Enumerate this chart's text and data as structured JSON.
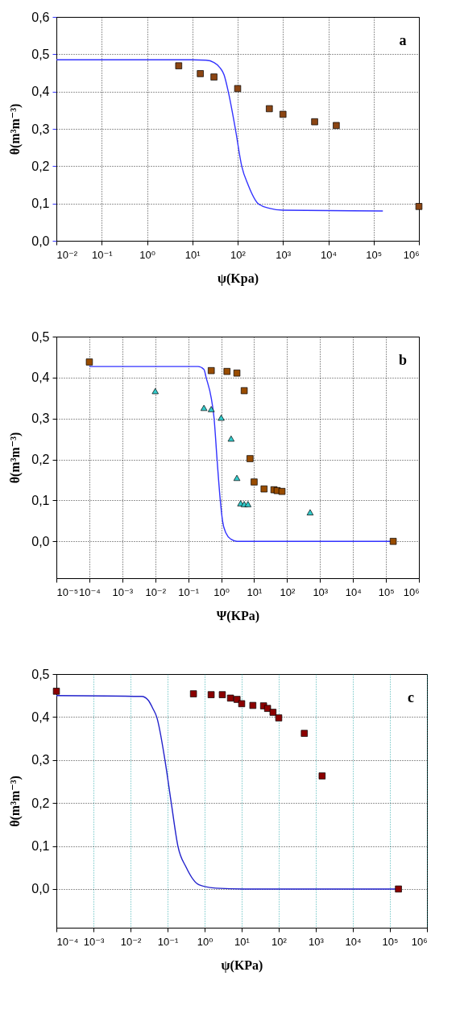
{
  "chart_data": [
    {
      "type": "scatter",
      "xlabel": "ψ(Kpa)",
      "ylabel": "θ(m³m⁻³)",
      "annotations": [
        "a"
      ],
      "log": "x",
      "grid": true,
      "xlim": [
        0.01,
        1000000
      ],
      "xticks": [
        {
          "value": 0.01,
          "label": "10⁻²"
        },
        {
          "value": 0.1,
          "label": "10⁻¹"
        },
        {
          "value": 1,
          "label": "10⁰"
        },
        {
          "value": 10,
          "label": "10¹"
        },
        {
          "value": 100,
          "label": "10²"
        },
        {
          "value": 1000,
          "label": "10³"
        },
        {
          "value": 10000,
          "label": "10⁴"
        },
        {
          "value": 100000,
          "label": "10⁵"
        },
        {
          "value": 1000000,
          "label": "10⁶"
        }
      ],
      "ylim": [
        0,
        0.6
      ],
      "yticks": [
        {
          "value": 0,
          "label": "0,0"
        },
        {
          "value": 0.1,
          "label": "0,1"
        },
        {
          "value": 0.2,
          "label": "0,2"
        },
        {
          "value": 0.3,
          "label": "0,3"
        },
        {
          "value": 0.4,
          "label": "0,4"
        },
        {
          "value": 0.5,
          "label": "0,5"
        },
        {
          "value": 0.6,
          "label": "0,6"
        }
      ],
      "series": [
        {
          "type": "line",
          "color": "#3333ff",
          "x": [
            0.01,
            10,
            20,
            30,
            40,
            50,
            62,
            89,
            123,
            170,
            282,
            500,
            1000,
            160000
          ],
          "values": [
            0.485,
            0.485,
            0.484,
            0.478,
            0.465,
            0.445,
            0.4,
            0.3,
            0.2,
            0.15,
            0.1,
            0.087,
            0.082,
            0.08
          ]
        },
        {
          "marker": "square",
          "color": "#8b4513",
          "x": [
            5,
            15,
            30,
            100,
            500,
            1000,
            5000,
            15000,
            1000000
          ],
          "values": [
            0.469,
            0.448,
            0.439,
            0.408,
            0.354,
            0.339,
            0.319,
            0.309,
            0.092
          ]
        }
      ]
    },
    {
      "type": "scatter",
      "xlabel": "Ψ(KPa)",
      "ylabel": "θ(m³m⁻³)",
      "annotations": [
        "b"
      ],
      "log": "x",
      "grid": true,
      "xlim": [
        1e-05,
        1000000
      ],
      "xticks": [
        {
          "value": 1e-05,
          "label": "10⁻⁵"
        },
        {
          "value": 0.0001,
          "label": "10⁻⁴"
        },
        {
          "value": 0.001,
          "label": "10⁻³"
        },
        {
          "value": 0.01,
          "label": "10⁻²"
        },
        {
          "value": 0.1,
          "label": "10⁻¹"
        },
        {
          "value": 1,
          "label": "10⁰"
        },
        {
          "value": 10,
          "label": "10¹"
        },
        {
          "value": 100,
          "label": "10²"
        },
        {
          "value": 1000,
          "label": "10³"
        },
        {
          "value": 10000,
          "label": "10⁴"
        },
        {
          "value": 100000,
          "label": "10⁵"
        },
        {
          "value": 1000000,
          "label": "10⁶"
        }
      ],
      "ylim": [
        -0.09,
        0.5
      ],
      "yticks": [
        {
          "value": 0,
          "label": "0,0"
        },
        {
          "value": 0.1,
          "label": "0,1"
        },
        {
          "value": 0.2,
          "label": "0,2"
        },
        {
          "value": 0.3,
          "label": "0,3"
        },
        {
          "value": 0.4,
          "label": "0,4"
        },
        {
          "value": 0.5,
          "label": "0,5"
        }
      ],
      "series": [
        {
          "type": "line",
          "color": "#3333ff",
          "x": [
            0.0001,
            0.2,
            0.3,
            0.35,
            0.5,
            0.61,
            0.75,
            0.94,
            1.1,
            1.4,
            2,
            3,
            166000
          ],
          "values": [
            0.427,
            0.427,
            0.42,
            0.4,
            0.35,
            0.3,
            0.2,
            0.1,
            0.05,
            0.02,
            0.005,
            0,
            0
          ]
        },
        {
          "marker": "square",
          "color": "#994c00",
          "x": [
            0.0001,
            0.5,
            1.5,
            3,
            5,
            7.5,
            10,
            20,
            40,
            50,
            70,
            166000
          ],
          "values": [
            0.438,
            0.417,
            0.415,
            0.411,
            0.368,
            0.202,
            0.145,
            0.128,
            0.126,
            0.124,
            0.122,
            0
          ]
        },
        {
          "marker": "triangle",
          "color": "#33cccc",
          "x": [
            0.01,
            0.3,
            0.5,
            1,
            2,
            3,
            3.9,
            5,
            6.5,
            500
          ],
          "values": [
            0.367,
            0.326,
            0.323,
            0.302,
            0.251,
            0.155,
            0.093,
            0.091,
            0.091,
            0.071
          ]
        }
      ]
    },
    {
      "type": "scatter",
      "xlabel": "ψ(KPa)",
      "ylabel": "θ(m³m⁻³)",
      "annotations": [
        "c"
      ],
      "log": "x",
      "grid": true,
      "xlim": [
        0.0001,
        1000000
      ],
      "xticks": [
        {
          "value": 0.0001,
          "label": "10⁻⁴"
        },
        {
          "value": 0.001,
          "label": "10⁻³"
        },
        {
          "value": 0.01,
          "label": "10⁻²"
        },
        {
          "value": 0.1,
          "label": "10⁻¹"
        },
        {
          "value": 1,
          "label": "10⁰"
        },
        {
          "value": 10,
          "label": "10¹"
        },
        {
          "value": 100,
          "label": "10²"
        },
        {
          "value": 1000,
          "label": "10³"
        },
        {
          "value": 10000,
          "label": "10⁴"
        },
        {
          "value": 100000,
          "label": "10⁵"
        },
        {
          "value": 1000000,
          "label": "10⁶"
        }
      ],
      "ylim": [
        -0.09,
        0.5
      ],
      "yticks": [
        {
          "value": 0,
          "label": "0,0"
        },
        {
          "value": 0.1,
          "label": "0,1"
        },
        {
          "value": 0.2,
          "label": "0,2"
        },
        {
          "value": 0.3,
          "label": "0,3"
        },
        {
          "value": 0.4,
          "label": "0,4"
        },
        {
          "value": 0.5,
          "label": "0,5"
        }
      ],
      "series": [
        {
          "type": "line",
          "color": "#2222cc",
          "x": [
            0.0001,
            0.02,
            0.03,
            0.04,
            0.051,
            0.085,
            0.126,
            0.19,
            0.32,
            0.7,
            2,
            12,
            166000
          ],
          "values": [
            0.45,
            0.448,
            0.439,
            0.42,
            0.4,
            0.3,
            0.2,
            0.1,
            0.05,
            0.01,
            0.002,
            0,
            0
          ]
        },
        {
          "marker": "square",
          "color": "#8b0000",
          "x": [
            0.0001,
            0.5,
            1.5,
            3,
            5,
            7.5,
            10,
            20,
            39,
            50,
            70,
            100,
            490,
            1480,
            170000
          ],
          "values": [
            0.46,
            0.454,
            0.452,
            0.452,
            0.444,
            0.441,
            0.431,
            0.427,
            0.426,
            0.42,
            0.411,
            0.398,
            0.362,
            0.263,
            0
          ]
        }
      ]
    }
  ]
}
